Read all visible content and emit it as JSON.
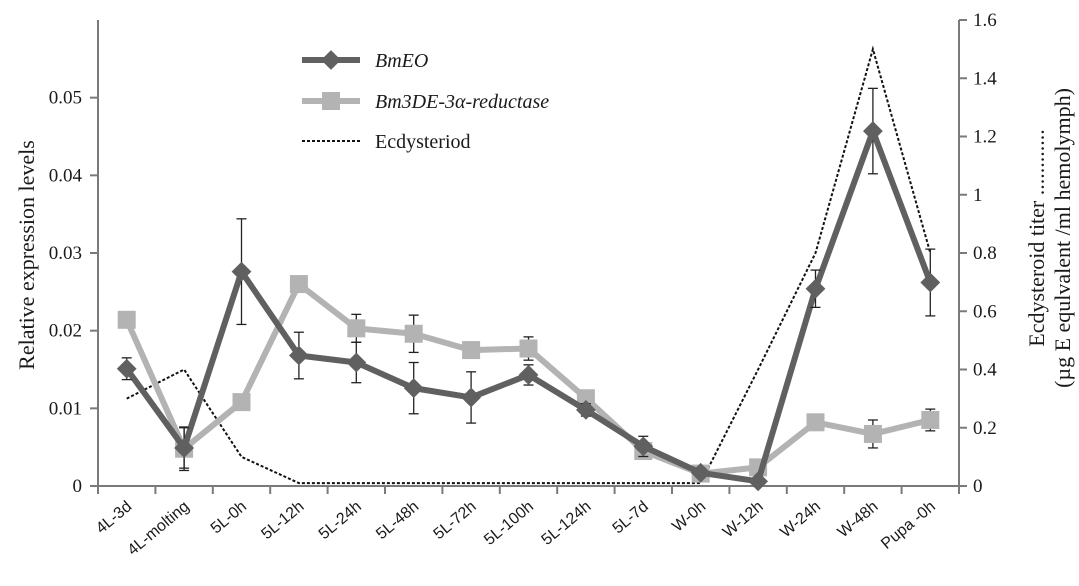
{
  "chart_data": {
    "type": "line",
    "categories": [
      "4L-3d",
      "4L-molting",
      "5L-0h",
      "5L-12h",
      "5L-24h",
      "5L-48h",
      "5L-72h",
      "5L-100h",
      "5L-124h",
      "5L-7d",
      "W-0h",
      "W-12h",
      "W-24h",
      "W-48h",
      "Pupa -0h"
    ],
    "ylabel_left": "Relative expression levels",
    "ylabel_right_line1": "Ecdysteroid titer ............",
    "ylabel_right_line2": "(µg E equlvalent /ml hemolymph)",
    "y_left": {
      "lim": [
        0,
        0.06
      ],
      "ticks": [
        "0",
        "0.01",
        "0.02",
        "0.03",
        "0.04",
        "0.05"
      ],
      "tick_values": [
        0,
        0.01,
        0.02,
        0.03,
        0.04,
        0.05
      ]
    },
    "y_right": {
      "lim": [
        0,
        1.6
      ],
      "ticks": [
        "0",
        "0.2",
        "0.4",
        "0.6",
        "0.8",
        "1",
        "1.2",
        "1.4",
        "1.6"
      ],
      "tick_values": [
        0,
        0.2,
        0.4,
        0.6,
        0.8,
        1.0,
        1.2,
        1.4,
        1.6
      ]
    },
    "series": [
      {
        "name": "BmEO",
        "axis": "left",
        "color": "#606060",
        "marker": "diamond",
        "values": [
          0.0151,
          0.0049,
          0.0276,
          0.0168,
          0.0159,
          0.0126,
          0.0114,
          0.0143,
          0.0098,
          0.0051,
          0.0017,
          0.0006,
          0.0254,
          0.0457,
          0.0262
        ],
        "errors": [
          0.0014,
          0.0026,
          0.0068,
          0.003,
          0.0026,
          0.0033,
          0.0033,
          0.0013,
          0.0008,
          0.0013,
          0.0005,
          0.0002,
          0.0024,
          0.0055,
          0.0043
        ]
      },
      {
        "name": "Bm3DE-3α-reductase",
        "axis": "left",
        "color": "#b3b3b3",
        "marker": "square",
        "values": [
          0.0214,
          0.0048,
          0.0108,
          0.026,
          0.0203,
          0.0196,
          0.0175,
          0.0177,
          0.0113,
          0.0045,
          0.0016,
          0.0024,
          0.0082,
          0.0067,
          0.0085
        ],
        "errors": [
          0.0,
          0.0028,
          0.0,
          0.0,
          0.0018,
          0.0024,
          0.0,
          0.0015,
          0.0,
          0.0,
          0.0,
          0.0,
          0.0,
          0.0018,
          0.0014
        ]
      },
      {
        "name": "Ecdysteriod",
        "axis": "right",
        "color": "#111111",
        "style": "dotted",
        "values": [
          0.3,
          0.4,
          0.1,
          0.01,
          0.01,
          0.01,
          0.01,
          0.01,
          0.01,
          0.01,
          0.01,
          0.4,
          0.8,
          1.5,
          0.8
        ]
      }
    ],
    "legend": {
      "position": "top-center",
      "entries": [
        "BmEO",
        "Bm3DE-3α-reductase",
        "Ecdysteriod"
      ]
    },
    "grid": false
  }
}
